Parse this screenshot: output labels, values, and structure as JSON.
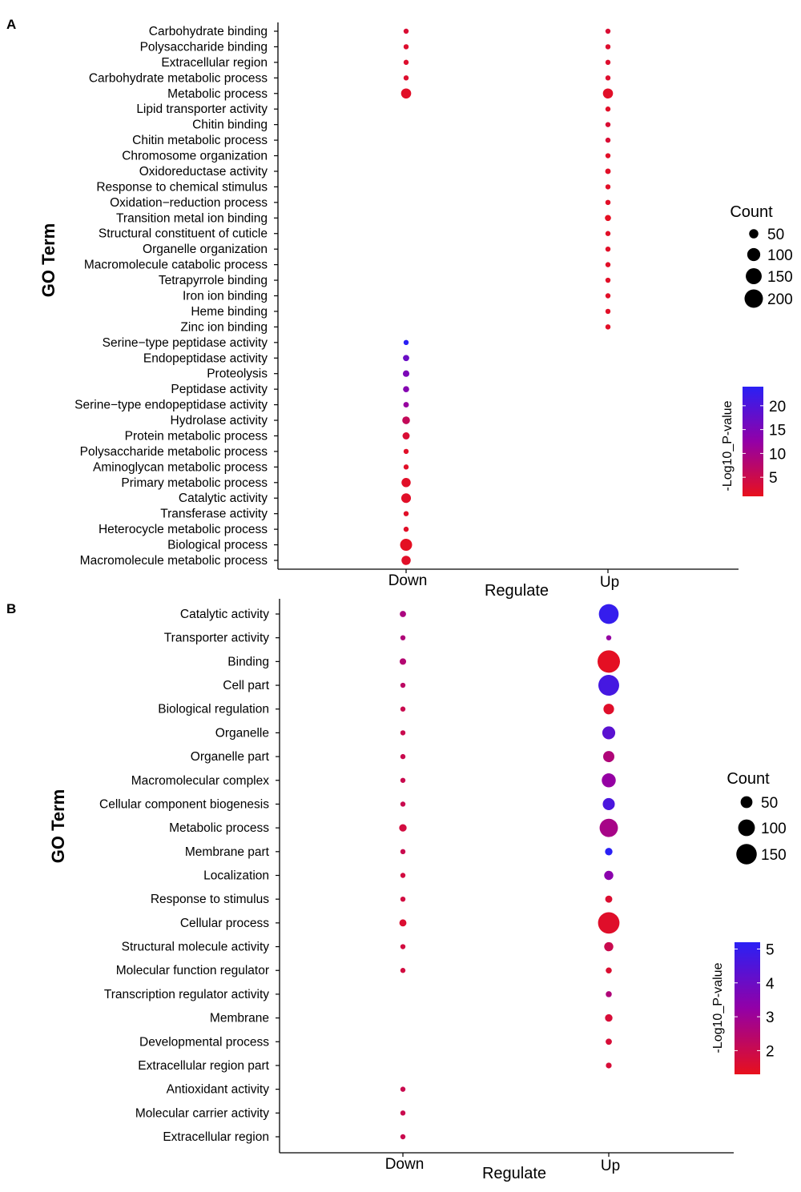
{
  "chart_data": [
    {
      "panel": "A",
      "type": "scatter",
      "title": "",
      "xlabel": "Regulate",
      "ylabel": "GO Term",
      "categories": [
        "Down",
        "Up"
      ],
      "size_legend": {
        "title": "Count",
        "values": [
          50,
          100,
          150,
          200
        ]
      },
      "color_legend": {
        "title": "-Log10_P-value",
        "ticks": [
          5,
          10,
          15,
          20
        ],
        "range": [
          1,
          24
        ],
        "low_color": "#e8101c",
        "high_color": "#2a20f5"
      },
      "terms": [
        "Carbohydrate  binding",
        "Polysaccharide  binding",
        "Extracellular  region",
        "Carbohydrate  metabolic  process",
        "Metabolic  process",
        "Lipid transporter  activity",
        "Chitin binding",
        "Chitin metabolic  process",
        "Chromosome  organization",
        "Oxidoreductase  activity",
        "Response  to chemical  stimulus",
        "Oxidation−reduction  process",
        "Transition  metal  ion binding",
        "Structural  constituent  of cuticle",
        "Organelle  organization",
        "Macromolecule  catabolic  process",
        "Tetrapyrrole  binding",
        "Iron  ion binding",
        "Heme  binding",
        "Zinc ion binding",
        "Serine−type  peptidase  activity",
        "Endopeptidase  activity",
        "Proteolysis",
        "Peptidase  activity",
        "Serine−type  endopeptidase  activity",
        "Hydrolase  activity",
        "Protein  metabolic  process",
        "Polysaccharide  metabolic  process",
        "Aminoglycan  metabolic  process",
        "Primary metabolic  process",
        "Catalytic activity",
        "Transferase  activity",
        "Heterocycle  metabolic  process",
        "Biological  process",
        "Macromolecule  metabolic  process"
      ],
      "points": [
        {
          "term": "Carbohydrate  binding",
          "regulate": "Down",
          "count": 12,
          "log10p": 3
        },
        {
          "term": "Carbohydrate  binding",
          "regulate": "Up",
          "count": 12,
          "log10p": 3
        },
        {
          "term": "Polysaccharide  binding",
          "regulate": "Down",
          "count": 9,
          "log10p": 2.5
        },
        {
          "term": "Polysaccharide  binding",
          "regulate": "Up",
          "count": 9,
          "log10p": 2.5
        },
        {
          "term": "Extracellular  region",
          "regulate": "Down",
          "count": 14,
          "log10p": 2.5
        },
        {
          "term": "Extracellular  region",
          "regulate": "Up",
          "count": 14,
          "log10p": 2.5
        },
        {
          "term": "Carbohydrate  metabolic  process",
          "regulate": "Down",
          "count": 15,
          "log10p": 2.5
        },
        {
          "term": "Carbohydrate  metabolic  process",
          "regulate": "Up",
          "count": 15,
          "log10p": 2.5
        },
        {
          "term": "Metabolic  process",
          "regulate": "Down",
          "count": 60,
          "log10p": 2
        },
        {
          "term": "Metabolic  process",
          "regulate": "Up",
          "count": 60,
          "log10p": 2
        },
        {
          "term": "Lipid transporter  activity",
          "regulate": "Up",
          "count": 3,
          "log10p": 2
        },
        {
          "term": "Chitin binding",
          "regulate": "Up",
          "count": 9,
          "log10p": 3
        },
        {
          "term": "Chitin metabolic  process",
          "regulate": "Up",
          "count": 8,
          "log10p": 3
        },
        {
          "term": "Chromosome  organization",
          "regulate": "Up",
          "count": 6,
          "log10p": 2
        },
        {
          "term": "Oxidoreductase  activity",
          "regulate": "Up",
          "count": 18,
          "log10p": 2
        },
        {
          "term": "Response  to chemical  stimulus",
          "regulate": "Up",
          "count": 5,
          "log10p": 2
        },
        {
          "term": "Oxidation−reduction  process",
          "regulate": "Up",
          "count": 16,
          "log10p": 2
        },
        {
          "term": "Transition  metal  ion binding",
          "regulate": "Up",
          "count": 22,
          "log10p": 1.5
        },
        {
          "term": "Structural  constituent  of cuticle",
          "regulate": "Up",
          "count": 6,
          "log10p": 2
        },
        {
          "term": "Organelle  organization",
          "regulate": "Up",
          "count": 6,
          "log10p": 2
        },
        {
          "term": "Macromolecule  catabolic  process",
          "regulate": "Up",
          "count": 5,
          "log10p": 2
        },
        {
          "term": "Tetrapyrrole  binding",
          "regulate": "Up",
          "count": 7,
          "log10p": 2
        },
        {
          "term": "Iron  ion binding",
          "regulate": "Up",
          "count": 7,
          "log10p": 2
        },
        {
          "term": "Heme  binding",
          "regulate": "Up",
          "count": 6,
          "log10p": 2
        },
        {
          "term": "Zinc ion binding",
          "regulate": "Up",
          "count": 16,
          "log10p": 2
        },
        {
          "term": "Serine−type  peptidase  activity",
          "regulate": "Down",
          "count": 15,
          "log10p": 24
        },
        {
          "term": "Endopeptidase  activity",
          "regulate": "Down",
          "count": 23,
          "log10p": 17
        },
        {
          "term": "Proteolysis",
          "regulate": "Down",
          "count": 25,
          "log10p": 15
        },
        {
          "term": "Peptidase  activity",
          "regulate": "Down",
          "count": 22,
          "log10p": 14
        },
        {
          "term": "Serine−type  endopeptidase  activity",
          "regulate": "Down",
          "count": 18,
          "log10p": 12
        },
        {
          "term": "Hydrolase  activity",
          "regulate": "Down",
          "count": 35,
          "log10p": 6
        },
        {
          "term": "Protein  metabolic  process",
          "regulate": "Down",
          "count": 30,
          "log10p": 3
        },
        {
          "term": "Polysaccharide  metabolic  process",
          "regulate": "Down",
          "count": 7,
          "log10p": 2
        },
        {
          "term": "Aminoglycan  metabolic  process",
          "regulate": "Down",
          "count": 6,
          "log10p": 2
        },
        {
          "term": "Primary metabolic  process",
          "regulate": "Down",
          "count": 50,
          "log10p": 2
        },
        {
          "term": "Catalytic activity",
          "regulate": "Down",
          "count": 55,
          "log10p": 2
        },
        {
          "term": "Transferase  activity",
          "regulate": "Down",
          "count": 7,
          "log10p": 2
        },
        {
          "term": "Heterocycle  metabolic  process",
          "regulate": "Down",
          "count": 6,
          "log10p": 2
        },
        {
          "term": "Biological  process",
          "regulate": "Down",
          "count": 85,
          "log10p": 1.5
        },
        {
          "term": "Macromolecule  metabolic  process",
          "regulate": "Down",
          "count": 50,
          "log10p": 2
        }
      ]
    },
    {
      "panel": "B",
      "type": "scatter",
      "title": "",
      "xlabel": "Regulate",
      "ylabel": "GO Term",
      "categories": [
        "Down",
        "Up"
      ],
      "size_legend": {
        "title": "Count",
        "values": [
          50,
          100,
          150
        ]
      },
      "color_legend": {
        "title": "-Log10_P-value",
        "ticks": [
          2,
          3,
          4,
          5
        ],
        "range": [
          1.3,
          5.2
        ],
        "low_color": "#e8101c",
        "high_color": "#2a20f5"
      },
      "terms": [
        "Catalytic  activity",
        "Transporter  activity",
        "Binding",
        "Cell  part",
        "Biological  regulation",
        "Organelle",
        "Organelle  part",
        "Macromolecular  complex",
        "Cellular  component  biogenesis",
        "Metabolic  process",
        "Membrane  part",
        "Localization",
        "Response  to stimulus",
        "Cellular  process",
        "Structural  molecule  activity",
        "Molecular  function  regulator",
        "Transcription  regulator  activity",
        "Membrane",
        "Developmental  process",
        "Extracellular  region  part",
        "Antioxidant  activity",
        "Molecular  carrier activity",
        "Extracellular  region"
      ],
      "points": [
        {
          "term": "Catalytic  activity",
          "regulate": "Down",
          "count": 14,
          "log10p": 2.7
        },
        {
          "term": "Catalytic  activity",
          "regulate": "Up",
          "count": 140,
          "log10p": 5.0
        },
        {
          "term": "Transporter  activity",
          "regulate": "Down",
          "count": 7,
          "log10p": 2.6
        },
        {
          "term": "Transporter  activity",
          "regulate": "Up",
          "count": 7,
          "log10p": 3.2
        },
        {
          "term": "Binding",
          "regulate": "Down",
          "count": 15,
          "log10p": 2.5
        },
        {
          "term": "Binding",
          "regulate": "Up",
          "count": 180,
          "log10p": 1.4
        },
        {
          "term": "Cell  part",
          "regulate": "Down",
          "count": 9,
          "log10p": 2.3
        },
        {
          "term": "Cell  part",
          "regulate": "Up",
          "count": 155,
          "log10p": 4.7
        },
        {
          "term": "Biological  regulation",
          "regulate": "Down",
          "count": 4,
          "log10p": 2
        },
        {
          "term": "Biological  regulation",
          "regulate": "Up",
          "count": 40,
          "log10p": 1.5
        },
        {
          "term": "Organelle",
          "regulate": "Down",
          "count": 7,
          "log10p": 2
        },
        {
          "term": "Organelle",
          "regulate": "Up",
          "count": 60,
          "log10p": 4.3
        },
        {
          "term": "Organelle  part",
          "regulate": "Down",
          "count": 6,
          "log10p": 2
        },
        {
          "term": "Organelle  part",
          "regulate": "Up",
          "count": 45,
          "log10p": 2.6
        },
        {
          "term": "Macromolecular  complex",
          "regulate": "Down",
          "count": 8,
          "log10p": 2
        },
        {
          "term": "Macromolecular  complex",
          "regulate": "Up",
          "count": 70,
          "log10p": 3.2
        },
        {
          "term": "Cellular  component  biogenesis",
          "regulate": "Down",
          "count": 7,
          "log10p": 2
        },
        {
          "term": "Cellular  component  biogenesis",
          "regulate": "Up",
          "count": 52,
          "log10p": 4.6
        },
        {
          "term": "Metabolic  process",
          "regulate": "Down",
          "count": 20,
          "log10p": 1.8
        },
        {
          "term": "Metabolic  process",
          "regulate": "Up",
          "count": 120,
          "log10p": 2.8
        },
        {
          "term": "Membrane  part",
          "regulate": "Down",
          "count": 6,
          "log10p": 2
        },
        {
          "term": "Membrane  part",
          "regulate": "Up",
          "count": 20,
          "log10p": 5.2
        },
        {
          "term": "Localization",
          "regulate": "Down",
          "count": 9,
          "log10p": 1.8
        },
        {
          "term": "Localization",
          "regulate": "Up",
          "count": 30,
          "log10p": 3.4
        },
        {
          "term": "Response  to stimulus",
          "regulate": "Down",
          "count": 6,
          "log10p": 1.8
        },
        {
          "term": "Response  to stimulus",
          "regulate": "Up",
          "count": 18,
          "log10p": 1.6
        },
        {
          "term": "Cellular  process",
          "regulate": "Down",
          "count": 18,
          "log10p": 1.6
        },
        {
          "term": "Cellular  process",
          "regulate": "Up",
          "count": 165,
          "log10p": 1.5
        },
        {
          "term": "Structural  molecule  activity",
          "regulate": "Down",
          "count": 9,
          "log10p": 1.8
        },
        {
          "term": "Structural  molecule  activity",
          "regulate": "Up",
          "count": 30,
          "log10p": 2
        },
        {
          "term": "Molecular  function  regulator",
          "regulate": "Down",
          "count": 3,
          "log10p": 1.8
        },
        {
          "term": "Molecular  function  regulator",
          "regulate": "Up",
          "count": 13,
          "log10p": 1.6
        },
        {
          "term": "Transcription  regulator  activity",
          "regulate": "Up",
          "count": 13,
          "log10p": 2.6
        },
        {
          "term": "Membrane",
          "regulate": "Up",
          "count": 20,
          "log10p": 1.7
        },
        {
          "term": "Developmental  process",
          "regulate": "Up",
          "count": 14,
          "log10p": 1.7
        },
        {
          "term": "Extracellular  region  part",
          "regulate": "Up",
          "count": 12,
          "log10p": 1.7
        },
        {
          "term": "Antioxidant  activity",
          "regulate": "Down",
          "count": 7,
          "log10p": 2
        },
        {
          "term": "Molecular  carrier activity",
          "regulate": "Down",
          "count": 4,
          "log10p": 2
        },
        {
          "term": "Extracellular  region",
          "regulate": "Down",
          "count": 7,
          "log10p": 2
        }
      ]
    }
  ]
}
